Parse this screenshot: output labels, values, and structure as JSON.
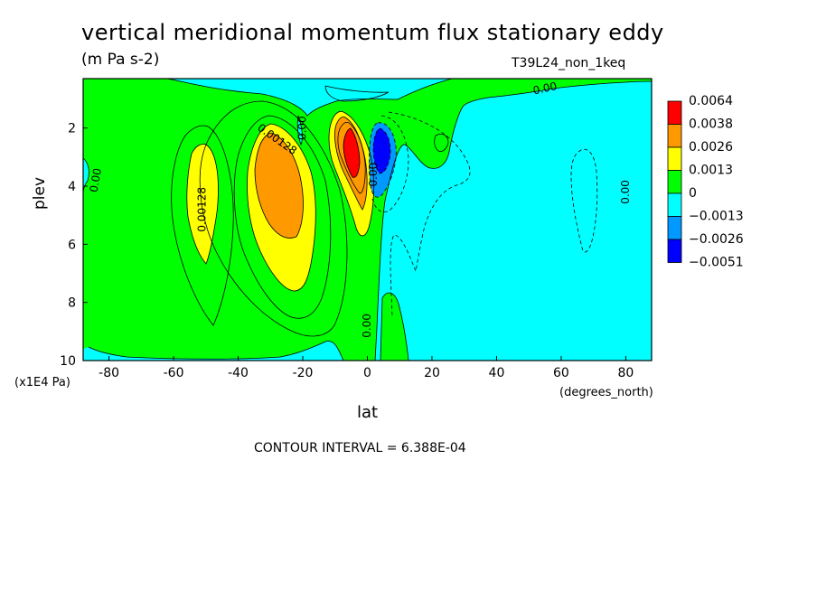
{
  "chart_data": {
    "type": "heatmap",
    "title": "vertical meridional momentum flux stationary eddy",
    "units": "(m Pa s-2)",
    "run_name": "T39L24_non_1keq",
    "xlabel": "lat",
    "x_units": "(degrees_north)",
    "ylabel": "plev",
    "y_units": "(x1E4 Pa)",
    "xlim": [
      -88,
      88
    ],
    "ylim": [
      10,
      0.3
    ],
    "x_ticks": [
      "-80",
      "-60",
      "-40",
      "-20",
      "0",
      "20",
      "40",
      "60",
      "80"
    ],
    "x_tick_values": [
      -80,
      -60,
      -40,
      -20,
      0,
      20,
      40,
      60,
      80
    ],
    "y_ticks": [
      "2",
      "4",
      "6",
      "8",
      "10"
    ],
    "y_tick_values": [
      2,
      4,
      6,
      8,
      10
    ],
    "contour_interval_text": "CONTOUR INTERVAL = 6.388E-04",
    "colorbar": {
      "labels": [
        "0.0064",
        "0.0038",
        "0.0026",
        "0.0013",
        "0",
        "−0.0013",
        "−0.0026",
        "−0.0051"
      ],
      "colors": [
        "#ff0000",
        "#ff9900",
        "#ffff00",
        "#00ff00",
        "#00ffff",
        "#0099ff",
        "#0000ff"
      ]
    },
    "contour_labels": [
      {
        "text": "0.00",
        "lon": 55,
        "lev": 0.65,
        "angle": -12
      },
      {
        "text": "0.00128",
        "lon": -28,
        "lev": 2.4,
        "angle": 35
      },
      {
        "text": "0.00128",
        "lon": -51,
        "lev": 4.8,
        "angle": -90
      },
      {
        "text": "0.00",
        "lon": -84,
        "lev": 3.8,
        "angle": -80
      },
      {
        "text": "0.00",
        "lon": 80,
        "lev": 4.2,
        "angle": -90
      },
      {
        "text": "0.00",
        "lon": -20,
        "lev": 2.0,
        "angle": -90
      },
      {
        "text": "0.00",
        "lon": 0,
        "lev": 8.8,
        "angle": -90
      },
      {
        "text": "0.00",
        "lon": 2,
        "lev": 3.6,
        "angle": -90
      }
    ],
    "grid": false,
    "legend_position": "right"
  }
}
